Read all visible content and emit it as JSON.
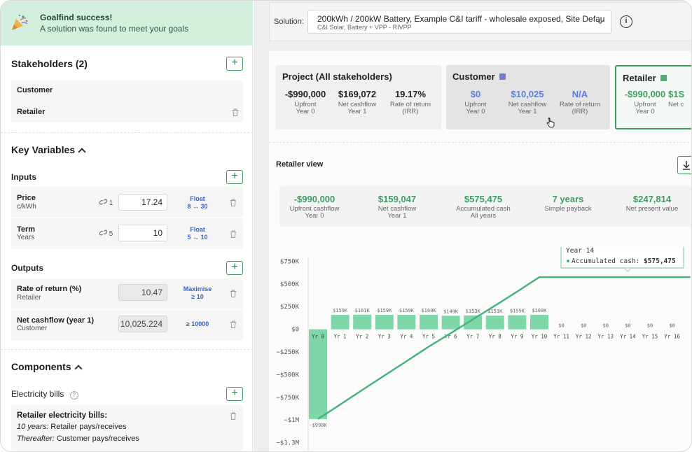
{
  "banner": {
    "title": "Goalfind success!",
    "message": "A solution was found to meet your goals",
    "icon": "party-popper-icon"
  },
  "stakeholders": {
    "title": "Stakeholders (2)",
    "items": [
      {
        "label": "Customer"
      },
      {
        "label": "Retailer"
      }
    ]
  },
  "key_variables": {
    "title": "Key Variables",
    "inputs_title": "Inputs",
    "inputs": [
      {
        "label": "Price",
        "unit": "c/kWh",
        "links": "1",
        "value": "17.24",
        "mode": "Float",
        "range": "8 ↔ 30"
      },
      {
        "label": "Term",
        "unit": "Years",
        "links": "5",
        "value": "10",
        "mode": "Float",
        "range": "5 ↔ 10"
      }
    ],
    "outputs_title": "Outputs",
    "outputs": [
      {
        "label": "Rate of return (%)",
        "owner": "Retailer",
        "value": "10.47",
        "goal": "Maximise",
        "goal_sub": "≥ 10"
      },
      {
        "label": "Net cashflow (year 1)",
        "owner": "Customer",
        "value": "10,025.224",
        "goal": "≥ 10000",
        "goal_sub": ""
      }
    ]
  },
  "components": {
    "title": "Components",
    "electricity_title": "Electricity bills",
    "bill": {
      "title": "Retailer electricity bills:",
      "line1_em": "10 years:",
      "line1": " Retailer pays/receives",
      "line2_em": "Thereafter:",
      "line2": " Customer pays/receives"
    }
  },
  "solution": {
    "label": "Solution:",
    "main": "200kWh / 200kW Battery, Example C&I tariff - wholesale exposed, Site Defau",
    "sub": "C&I Solar, Battery + VPP - RIVPP"
  },
  "cards": [
    {
      "title": "Project (All stakeholders)",
      "square": "",
      "metrics": [
        {
          "value": "-$990,000",
          "l1": "Upfront",
          "l2": "Year 0"
        },
        {
          "value": "$169,072",
          "l1": "Net cashflow",
          "l2": "Year 1"
        },
        {
          "value": "19.17%",
          "l1": "Rate of return",
          "l2": "(IRR)"
        }
      ]
    },
    {
      "title": "Customer",
      "square": "#6f7fe0",
      "metrics": [
        {
          "value": "$0",
          "l1": "Upfront",
          "l2": "Year 0"
        },
        {
          "value": "$10,025",
          "l1": "Net cashflow",
          "l2": "Year 1"
        },
        {
          "value": "N/A",
          "l1": "Rate of return",
          "l2": "(IRR)"
        }
      ]
    },
    {
      "title": "Retailer",
      "square": "#4cae74",
      "metrics": [
        {
          "value": "-$990,000",
          "l1": "Upfront",
          "l2": "Year 0"
        },
        {
          "value": "$1S",
          "l1": "Net c",
          "l2": ""
        }
      ]
    }
  ],
  "retailer_view": {
    "title": "Retailer view",
    "metrics": [
      {
        "value": "-$990,000",
        "l1": "Upfront cashflow",
        "l2": "Year 0"
      },
      {
        "value": "$159,047",
        "l1": "Net cashflow",
        "l2": "Year 1"
      },
      {
        "value": "$575,475",
        "l1": "Accumulated cash",
        "l2": "All years"
      },
      {
        "value": "7 years",
        "l1": "Simple payback",
        "l2": ""
      },
      {
        "value": "$247,814",
        "l1": "Net present value",
        "l2": ""
      }
    ]
  },
  "colors": {
    "accent": "#3e9e62",
    "bar": "#7fd6a8",
    "line": "#44b27a",
    "customer": "#6f7fe0",
    "retailer": "#4cae74"
  },
  "chart_data": {
    "type": "bar",
    "categories": [
      "Yr 0",
      "Yr 1",
      "Yr 2",
      "Yr 3",
      "Yr 4",
      "Yr 5",
      "Yr 6",
      "Yr 7",
      "Yr 8",
      "Yr 9",
      "Yr 10",
      "Yr 11",
      "Yr 12",
      "Yr 13",
      "Yr 14",
      "Yr 15",
      "Yr 16"
    ],
    "values": [
      -990000,
      159000,
      161000,
      159000,
      159000,
      160000,
      149000,
      153000,
      151000,
      155000,
      160000,
      0,
      0,
      0,
      0,
      0,
      0
    ],
    "data_labels": [
      "-$990K",
      "$159K",
      "$161K",
      "$159K",
      "$159K",
      "$160K",
      "$149K",
      "$153K",
      "$151K",
      "$155K",
      "$160K",
      "$0",
      "$0",
      "$0",
      "$0",
      "$0",
      "$0"
    ],
    "series": [
      {
        "name": "Net cashflow",
        "type": "bar",
        "values": [
          -990000,
          159000,
          161000,
          159000,
          159000,
          160000,
          149000,
          153000,
          151000,
          155000,
          160000,
          0,
          0,
          0,
          0,
          0,
          0
        ]
      },
      {
        "name": "Accumulated cash",
        "type": "line",
        "values": [
          -990000,
          -831000,
          -670000,
          -511000,
          -352000,
          -192000,
          -43000,
          110000,
          261000,
          416000,
          575475,
          575475,
          575475,
          575475,
          575475,
          575475,
          575475
        ]
      }
    ],
    "yticks": [
      750000,
      500000,
      250000,
      0,
      -250000,
      -500000,
      -750000,
      -1000000,
      -1250000
    ],
    "ytick_labels": [
      "$750K",
      "$500K",
      "$250K",
      "$0",
      "−$250K",
      "−$500K",
      "−$750K",
      "−$1M",
      "−$1.3M"
    ],
    "ylim": [
      -1300000,
      800000
    ],
    "tooltip": {
      "title": "Year 14",
      "label": "Accumulated cash:",
      "value": "$575,475"
    }
  }
}
